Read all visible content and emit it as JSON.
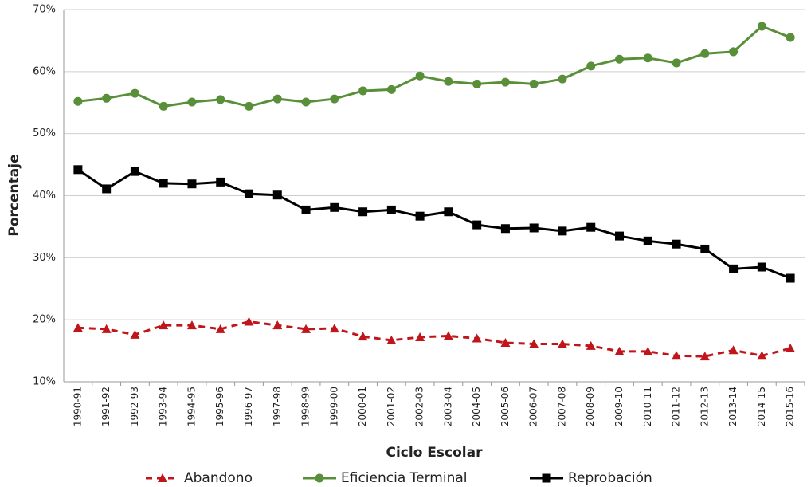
{
  "chart_data": {
    "type": "line",
    "x_label": "Ciclo Escolar",
    "y_label": "Porcentaje",
    "categories": [
      "1990-91",
      "1991-92",
      "1992-93",
      "1993-94",
      "1994-95",
      "1995-96",
      "1996-97",
      "1997-98",
      "1998-99",
      "1999-00",
      "2000-01",
      "2001-02",
      "2002-03",
      "2003-04",
      "2004-05",
      "2005-06",
      "2006-07",
      "2007-08",
      "2008-09",
      "2009-10",
      "2010-11",
      "2011-12",
      "2012-13",
      "2013-14",
      "2014-15",
      "2015-16"
    ],
    "series": [
      {
        "name": "Abandono",
        "color": "#c0151b",
        "marker": "triangle",
        "dashed": true,
        "values": [
          18.7,
          18.5,
          17.6,
          19.1,
          19.1,
          18.5,
          19.7,
          19.1,
          18.5,
          18.6,
          17.3,
          16.7,
          17.2,
          17.4,
          17.0,
          16.3,
          16.1,
          16.1,
          15.8,
          14.9,
          14.9,
          14.2,
          14.1,
          15.1,
          14.2,
          15.4
        ]
      },
      {
        "name": "Eficiencia Terminal",
        "color": "#5a8f3a",
        "marker": "circle",
        "dashed": false,
        "values": [
          55.2,
          55.7,
          56.5,
          54.4,
          55.1,
          55.5,
          54.4,
          55.6,
          55.1,
          55.6,
          56.9,
          57.1,
          59.3,
          58.4,
          58.0,
          58.3,
          58.0,
          58.8,
          60.9,
          62.0,
          62.2,
          61.4,
          62.9,
          63.2,
          67.3,
          65.5
        ]
      },
      {
        "name": "Reprobación",
        "color": "#000000",
        "marker": "square",
        "dashed": false,
        "values": [
          44.2,
          41.1,
          43.9,
          42.0,
          41.9,
          42.2,
          40.3,
          40.1,
          37.7,
          38.1,
          37.4,
          37.7,
          36.7,
          37.4,
          35.3,
          34.7,
          34.8,
          34.3,
          34.9,
          33.5,
          32.7,
          32.2,
          31.4,
          28.2,
          28.5,
          26.7
        ]
      }
    ],
    "ylim": [
      10,
      70
    ],
    "yticks": [
      {
        "value": 10,
        "label": "10%"
      },
      {
        "value": 20,
        "label": "20%"
      },
      {
        "value": 30,
        "label": "30%"
      },
      {
        "value": 40,
        "label": "40%"
      },
      {
        "value": 50,
        "label": "50%"
      },
      {
        "value": 60,
        "label": "60%"
      },
      {
        "value": 70,
        "label": "70%"
      }
    ],
    "grid": true,
    "legend": "bottom"
  }
}
